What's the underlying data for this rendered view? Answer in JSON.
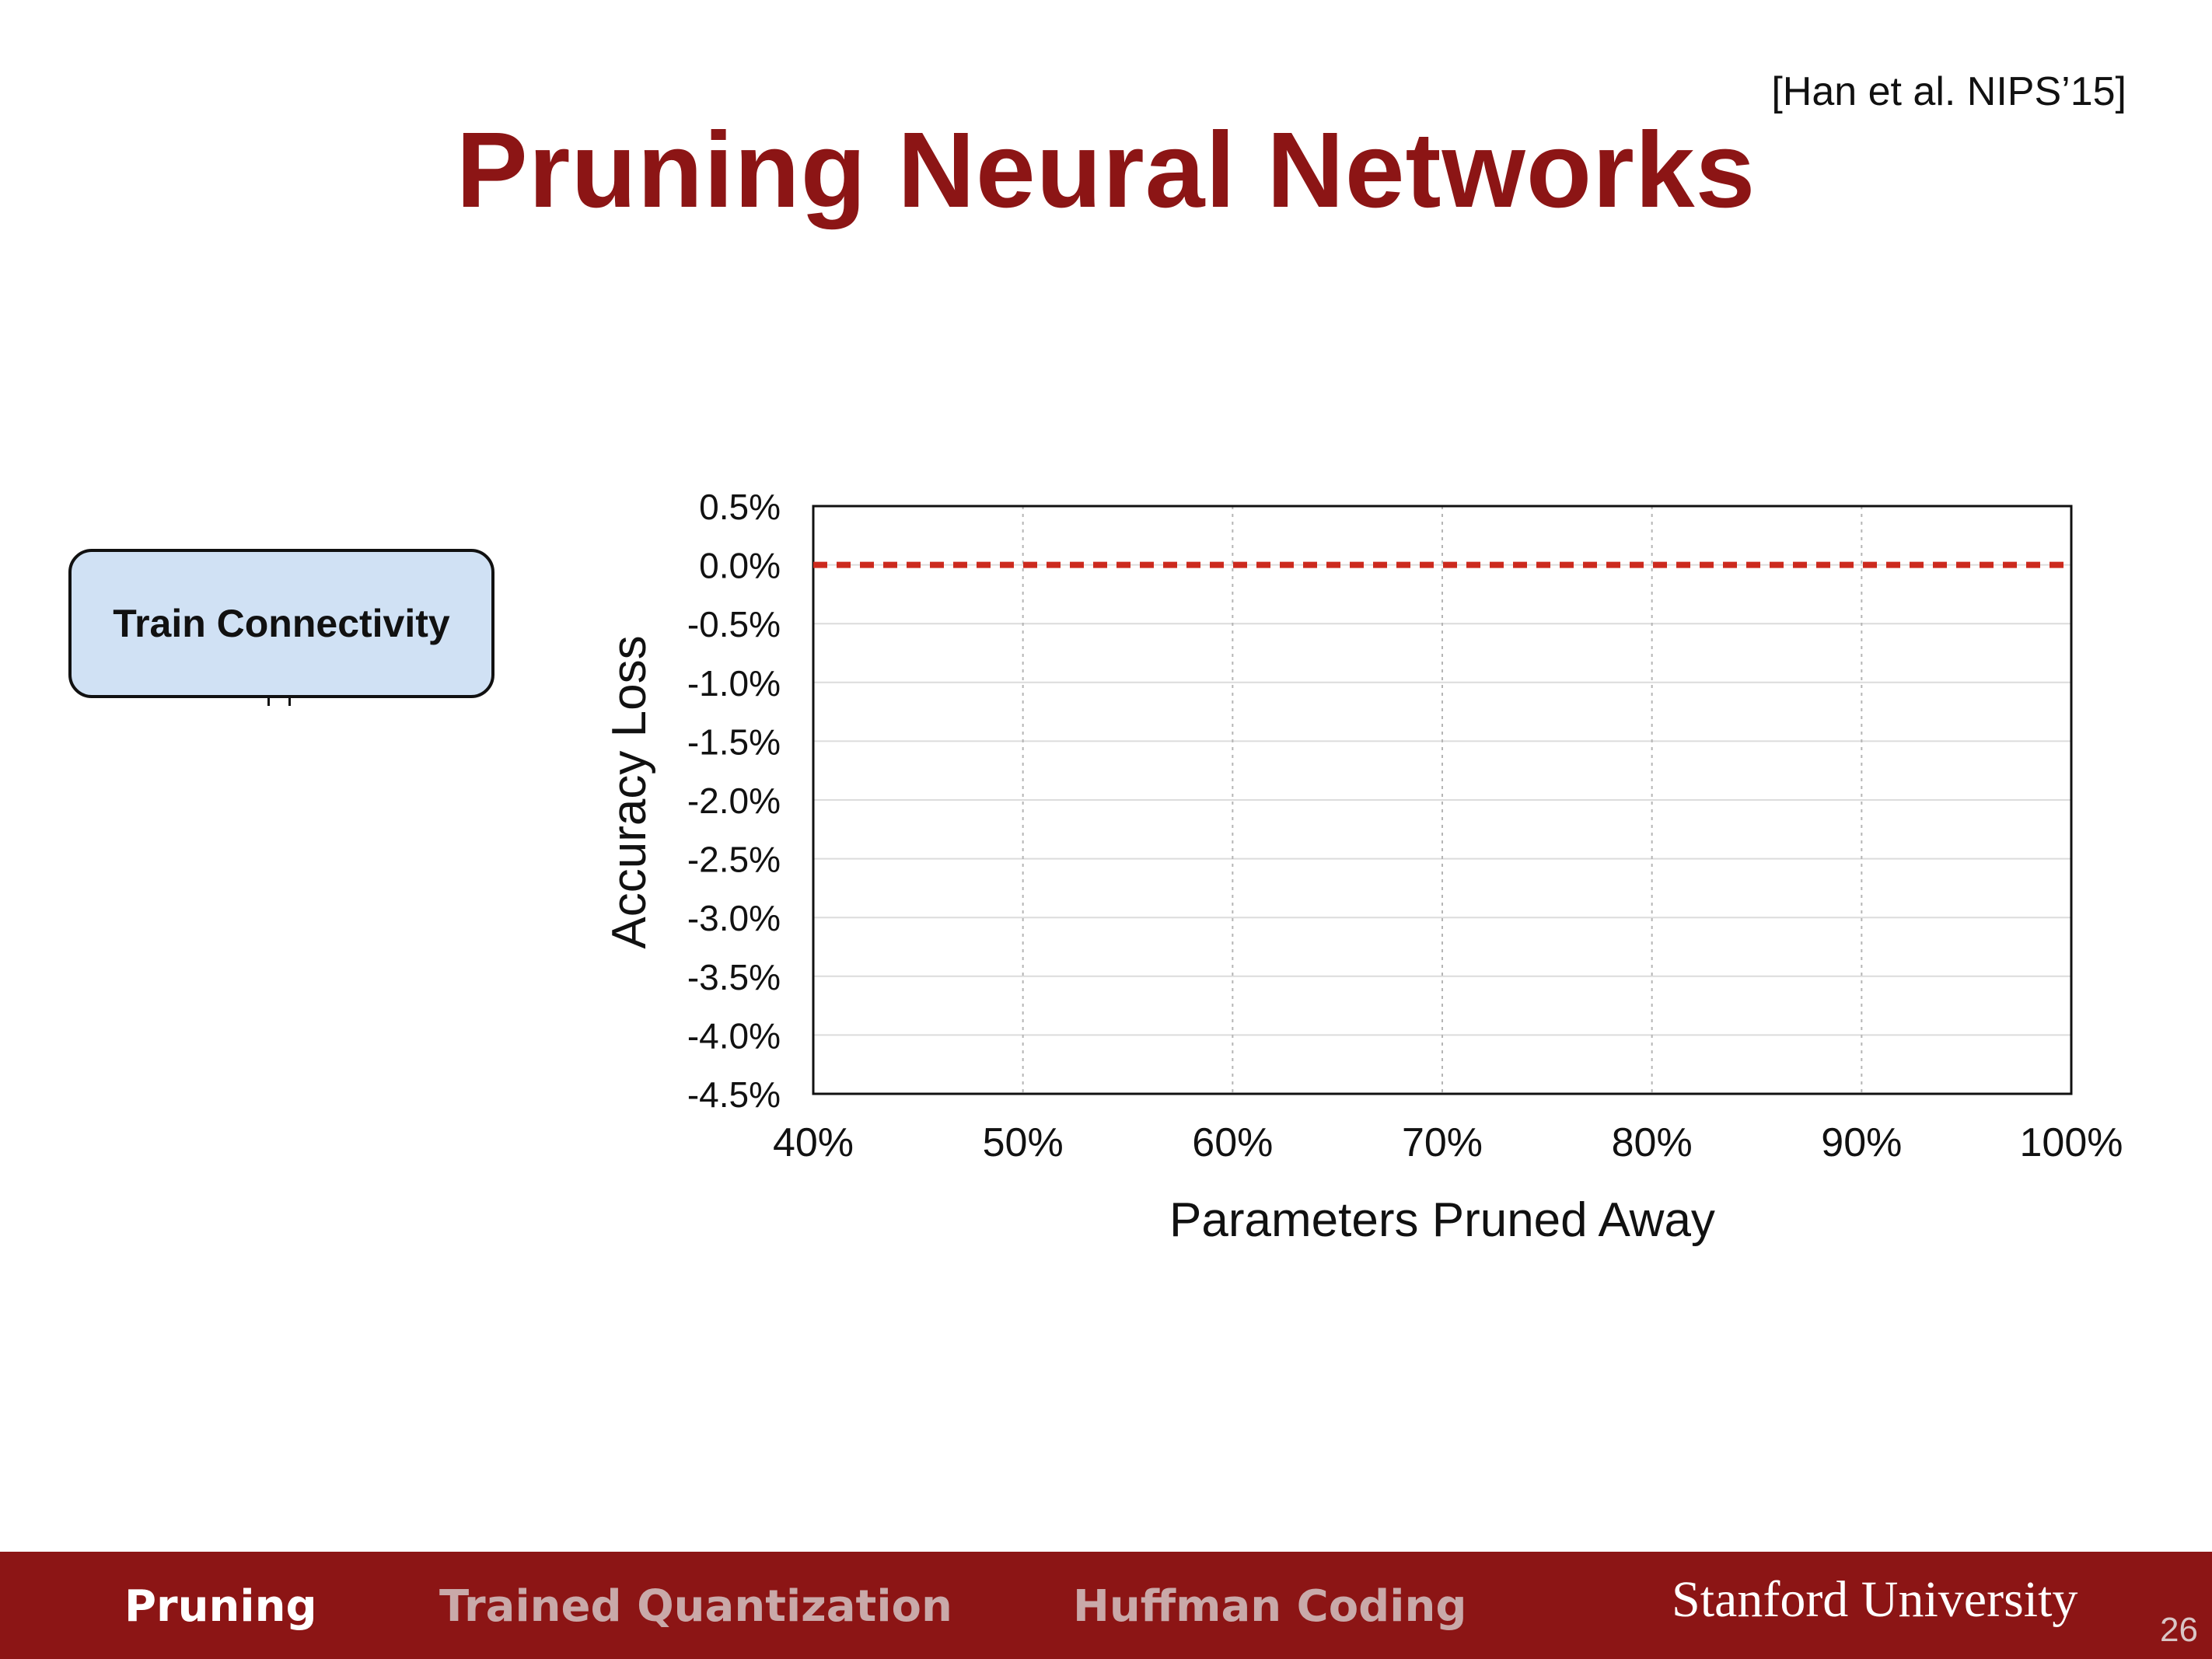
{
  "slide": {
    "title": "Pruning Neural Networks",
    "citation": "[Han et al. NIPS’15]",
    "box_label": "Train Connectivity",
    "page_number": "26"
  },
  "footer": {
    "tabs": [
      {
        "label": "Pruning",
        "active": true
      },
      {
        "label": "Trained Quantization",
        "active": false
      },
      {
        "label": "Huffman Coding",
        "active": false
      }
    ],
    "brand": "Stanford University"
  },
  "colors": {
    "title": "#8c1515",
    "footer_bg": "#8c1515",
    "box_fill": "#d0e1f4",
    "baseline": "#cc2a1e"
  },
  "chart_data": {
    "type": "line",
    "title": "",
    "xlabel": "Parameters Pruned Away",
    "ylabel": "Accuracy Loss",
    "x_ticks": [
      "40%",
      "50%",
      "60%",
      "70%",
      "80%",
      "90%",
      "100%"
    ],
    "y_ticks": [
      "0.5%",
      "0.0%",
      "-0.5%",
      "-1.0%",
      "-1.5%",
      "-2.0%",
      "-2.5%",
      "-3.0%",
      "-3.5%",
      "-4.0%",
      "-4.5%"
    ],
    "xlim": [
      40,
      100
    ],
    "ylim": [
      -4.5,
      0.5
    ],
    "grid": true,
    "series": [
      {
        "style": "dashed",
        "color": "#cc2a1e",
        "x": [
          40,
          100
        ],
        "y": [
          0.0,
          0.0
        ]
      }
    ]
  }
}
